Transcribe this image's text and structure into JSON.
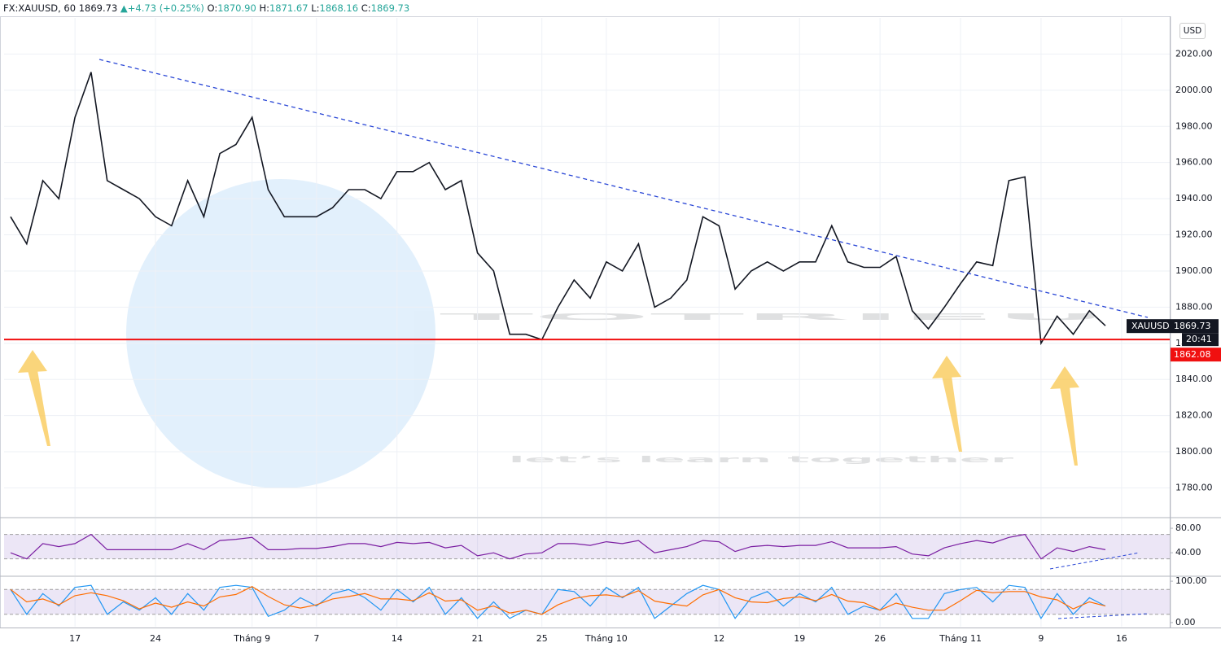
{
  "header": {
    "symbol": "FX:XAUUSD, 60",
    "last": "1869.73",
    "change": "+4.73",
    "change_pct": "(+0.25%)",
    "ohlc": [
      {
        "label": "O:",
        "value": "1870.90"
      },
      {
        "label": "H:",
        "value": "1871.67"
      },
      {
        "label": "L:",
        "value": "1868.16"
      },
      {
        "label": "C:",
        "value": "1869.73"
      }
    ],
    "currency": "USD"
  },
  "watermark": {
    "brand": "TOTRIEU",
    "slogan": "let’s learn together"
  },
  "chart_data": [
    {
      "type": "line",
      "series": [
        {
          "color": "#131722",
          "values": [
            1930,
            1915,
            1950,
            1940,
            1985,
            2010,
            1950,
            1945,
            1940,
            1930,
            1925,
            1950,
            1930,
            1965,
            1970,
            1985,
            1945,
            1930,
            1930,
            1930,
            1935,
            1945,
            1945,
            1940,
            1955,
            1955,
            1960,
            1945,
            1950,
            1910,
            1900,
            1865,
            1865,
            1862,
            1880,
            1895,
            1885,
            1905,
            1900,
            1915,
            1880,
            1885,
            1895,
            1930,
            1925,
            1890,
            1900,
            1905,
            1900,
            1905,
            1905,
            1925,
            1905,
            1902,
            1902,
            1908,
            1878,
            1868,
            1880,
            1893,
            1905,
            1903,
            1950,
            1952,
            1860,
            1875,
            1865,
            1878,
            1869.73,
            null
          ]
        }
      ],
      "ylim": [
        1764,
        2040
      ],
      "yticks": [
        {
          "value": 1780,
          "label": "1780.00"
        },
        {
          "value": 1800,
          "label": "1800.00"
        },
        {
          "value": 1820,
          "label": "1820.00"
        },
        {
          "value": 1840,
          "label": "1840.00"
        },
        {
          "value": 1860,
          "label": "1860.00"
        },
        {
          "value": 1880,
          "label": "1880.00"
        },
        {
          "value": 1900,
          "label": "1900.00"
        },
        {
          "value": 1920,
          "label": "1920.00"
        },
        {
          "value": 1940,
          "label": "1940.00"
        },
        {
          "value": 1960,
          "label": "1960.00"
        },
        {
          "value": 1980,
          "label": "1980.00"
        },
        {
          "value": 2000,
          "label": "2000.00"
        },
        {
          "value": 2020,
          "label": "2020.00"
        }
      ],
      "grid": true,
      "support": 1862.08,
      "price_label": {
        "symbol": "XAUUSD",
        "value": 1869.73,
        "countdown": "20:41"
      }
    },
    {
      "type": "line",
      "series": [
        {
          "color": "#7b1fa2",
          "values": [
            40,
            30,
            55,
            50,
            55,
            70,
            45,
            45,
            45,
            45,
            45,
            55,
            45,
            60,
            62,
            65,
            45,
            45,
            47,
            47,
            50,
            55,
            55,
            50,
            57,
            55,
            57,
            48,
            52,
            35,
            40,
            30,
            38,
            40,
            55,
            55,
            52,
            58,
            55,
            60,
            40,
            45,
            50,
            60,
            58,
            42,
            50,
            52,
            50,
            52,
            52,
            58,
            48,
            48,
            48,
            50,
            38,
            35,
            48,
            55,
            60,
            56,
            65,
            70,
            30,
            48,
            42,
            50,
            45,
            null
          ]
        }
      ],
      "ylim": [
        3,
        96
      ],
      "yticks": [
        {
          "value": 40,
          "label": "40.00"
        },
        {
          "value": 80,
          "label": "80.00"
        }
      ],
      "bands": [
        30,
        70
      ]
    },
    {
      "type": "line",
      "series": [
        {
          "color": "#2196f3",
          "values": [
            80,
            20,
            70,
            40,
            85,
            90,
            20,
            50,
            30,
            60,
            20,
            70,
            30,
            85,
            90,
            85,
            15,
            30,
            60,
            40,
            70,
            80,
            60,
            30,
            80,
            50,
            85,
            20,
            60,
            10,
            50,
            10,
            30,
            20,
            80,
            75,
            40,
            85,
            60,
            85,
            10,
            40,
            70,
            90,
            80,
            10,
            60,
            75,
            40,
            70,
            50,
            85,
            20,
            40,
            30,
            70,
            10,
            10,
            70,
            80,
            85,
            50,
            90,
            85,
            10,
            70,
            20,
            60,
            40,
            null
          ]
        },
        {
          "color": "#ff6d00",
          "values": [
            80,
            50,
            57,
            43,
            65,
            72,
            65,
            53,
            33,
            47,
            37,
            50,
            40,
            62,
            68,
            87,
            63,
            43,
            35,
            43,
            57,
            63,
            70,
            57,
            57,
            53,
            72,
            52,
            55,
            30,
            40,
            23,
            30,
            20,
            43,
            58,
            65,
            67,
            62,
            77,
            52,
            45,
            40,
            67,
            80,
            60,
            50,
            48,
            58,
            62,
            53,
            68,
            52,
            48,
            30,
            47,
            37,
            30,
            30,
            53,
            78,
            72,
            75,
            75,
            62,
            55,
            33,
            50,
            40,
            null
          ]
        }
      ],
      "categories": [
        null,
        null,
        null,
        null,
        "17",
        null,
        null,
        null,
        null,
        "24",
        null,
        null,
        null,
        null,
        null,
        "Tháng 9",
        null,
        null,
        null,
        "7",
        null,
        null,
        null,
        null,
        "14",
        null,
        null,
        null,
        null,
        "21",
        null,
        null,
        null,
        "25",
        null,
        null,
        null,
        "Tháng 10",
        null,
        null,
        null,
        null,
        null,
        null,
        "12",
        null,
        null,
        null,
        null,
        "19",
        null,
        null,
        null,
        null,
        "26",
        null,
        null,
        null,
        null,
        "Tháng 11",
        null,
        null,
        null,
        null,
        "9",
        null,
        null,
        null,
        null,
        "16"
      ],
      "ylim": [
        -10,
        110
      ],
      "yticks": [
        {
          "value": 0,
          "label": "0.00"
        },
        {
          "value": 100,
          "label": "100.00"
        }
      ],
      "bands": [
        20,
        80
      ]
    }
  ]
}
